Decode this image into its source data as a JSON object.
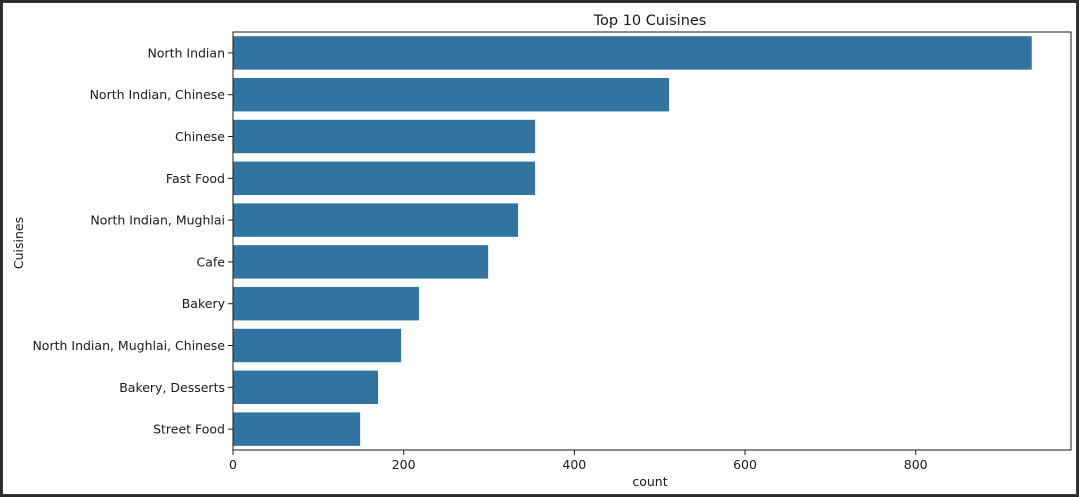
{
  "chart_data": {
    "type": "bar",
    "orientation": "horizontal",
    "title": "Top 10 Cuisines",
    "xlabel": "count",
    "ylabel": "Cuisines",
    "categories": [
      "North Indian",
      "North Indian, Chinese",
      "Chinese",
      "Fast Food",
      "North Indian, Mughlai",
      "Cafe",
      "Bakery",
      "North Indian, Mughlai, Chinese",
      "Bakery, Desserts",
      "Street Food"
    ],
    "values": [
      936,
      511,
      354,
      354,
      334,
      299,
      218,
      197,
      170,
      149
    ],
    "xlim": [
      0,
      982
    ],
    "xticks": [
      0,
      200,
      400,
      600,
      800
    ],
    "xtick_labels": [
      "0",
      "200",
      "400",
      "600",
      "800"
    ],
    "bar_color": "#3274a1",
    "grid": false
  }
}
